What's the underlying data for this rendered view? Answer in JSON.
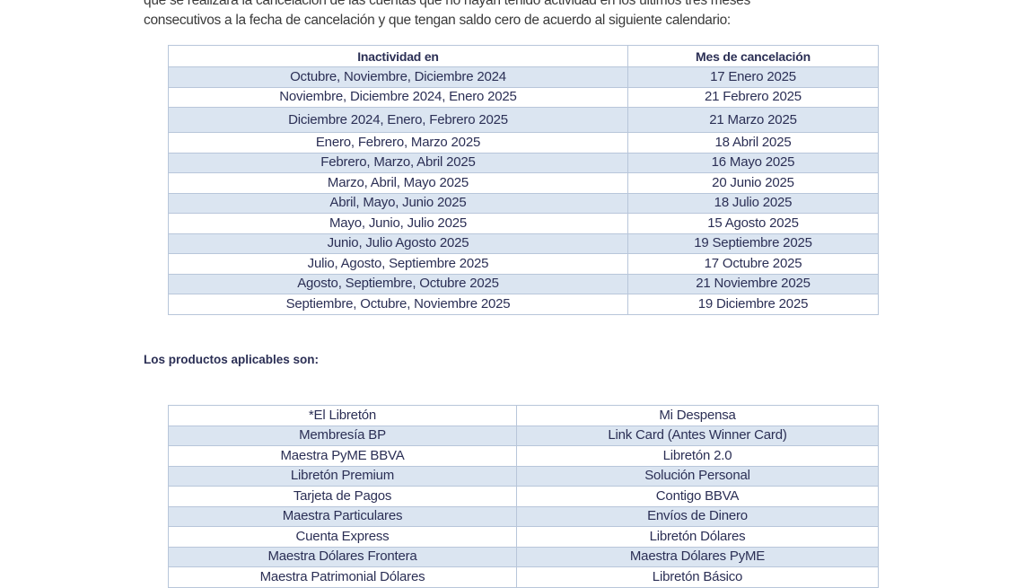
{
  "intro": {
    "line1": "que se realizará la cancelación de las cuentas que no hayan tenido actividad en los últimos tres meses",
    "line2": "consecutivos a la fecha de cancelación y que tengan saldo cero de acuerdo al siguiente calendario:"
  },
  "calendar": {
    "headers": [
      "Inactividad en",
      "Mes de cancelación"
    ],
    "rows": [
      [
        "Octubre, Noviembre, Diciembre 2024",
        "17 Enero 2025"
      ],
      [
        "Noviembre, Diciembre 2024, Enero 2025",
        "21 Febrero 2025"
      ],
      [
        "Diciembre 2024, Enero, Febrero 2025",
        "21 Marzo 2025"
      ],
      [
        "Enero, Febrero, Marzo 2025",
        "18 Abril 2025"
      ],
      [
        "Febrero, Marzo, Abril 2025",
        "16 Mayo 2025"
      ],
      [
        "Marzo, Abril, Mayo 2025",
        "20 Junio 2025"
      ],
      [
        "Abril, Mayo, Junio 2025",
        "18 Julio 2025"
      ],
      [
        "Mayo, Junio, Julio 2025",
        "15 Agosto 2025"
      ],
      [
        "Junio, Julio Agosto 2025",
        "19 Septiembre 2025"
      ],
      [
        "Julio, Agosto, Septiembre 2025",
        "17 Octubre 2025"
      ],
      [
        "Agosto, Septiembre, Octubre 2025",
        "21 Noviembre 2025"
      ],
      [
        "Septiembre, Octubre, Noviembre 2025",
        "19 Diciembre 2025"
      ]
    ]
  },
  "products": {
    "title": "Los productos aplicables son:",
    "rows": [
      [
        "*El Libretón",
        "Mi Despensa"
      ],
      [
        "Membresía BP",
        "Link Card (Antes Winner Card)"
      ],
      [
        "Maestra PyME BBVA",
        "Libretón 2.0"
      ],
      [
        "Libretón Premium",
        "Solución Personal"
      ],
      [
        "Tarjeta de Pagos",
        "Contigo BBVA"
      ],
      [
        "Maestra Particulares",
        "Envíos de Dinero"
      ],
      [
        "Cuenta Express",
        "Libretón Dólares"
      ],
      [
        "Maestra Dólares Frontera",
        "Maestra Dólares PyME"
      ],
      [
        "Maestra Patrimonial Dólares",
        "Libretón Básico"
      ]
    ]
  },
  "colors": {
    "row_alt": "#dbe5f1",
    "text": "#2b2f55",
    "border": "#b8c6da"
  }
}
